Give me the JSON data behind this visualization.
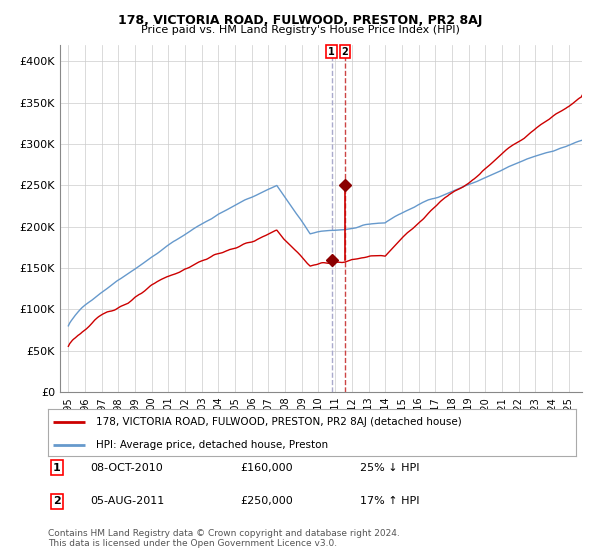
{
  "title": "178, VICTORIA ROAD, FULWOOD, PRESTON, PR2 8AJ",
  "subtitle": "Price paid vs. HM Land Registry's House Price Index (HPI)",
  "legend_line1": "178, VICTORIA ROAD, FULWOOD, PRESTON, PR2 8AJ (detached house)",
  "legend_line2": "HPI: Average price, detached house, Preston",
  "footnote1": "Contains HM Land Registry data © Crown copyright and database right 2024.",
  "footnote2": "This data is licensed under the Open Government Licence v3.0.",
  "transaction1_label": "1",
  "transaction1_date": "08-OCT-2010",
  "transaction1_price": "£160,000",
  "transaction1_hpi": "25% ↓ HPI",
  "transaction2_label": "2",
  "transaction2_date": "05-AUG-2011",
  "transaction2_price": "£250,000",
  "transaction2_hpi": "17% ↑ HPI",
  "line_color_property": "#cc0000",
  "line_color_hpi": "#6699cc",
  "marker_color": "#8b0000",
  "vline1_color": "#aaaacc",
  "vline2_color": "#cc4444",
  "ylim": [
    0,
    420000
  ],
  "yticks": [
    0,
    50000,
    100000,
    150000,
    200000,
    250000,
    300000,
    350000,
    400000
  ],
  "ytick_labels": [
    "£0",
    "£50K",
    "£100K",
    "£150K",
    "£200K",
    "£250K",
    "£300K",
    "£350K",
    "£400K"
  ],
  "background_color": "#ffffff",
  "grid_color": "#cccccc",
  "transaction1_x": 2010.78,
  "transaction1_y": 160000,
  "transaction2_x": 2011.59,
  "transaction2_y": 250000,
  "xlim_left": 1994.5,
  "xlim_right": 2025.8
}
